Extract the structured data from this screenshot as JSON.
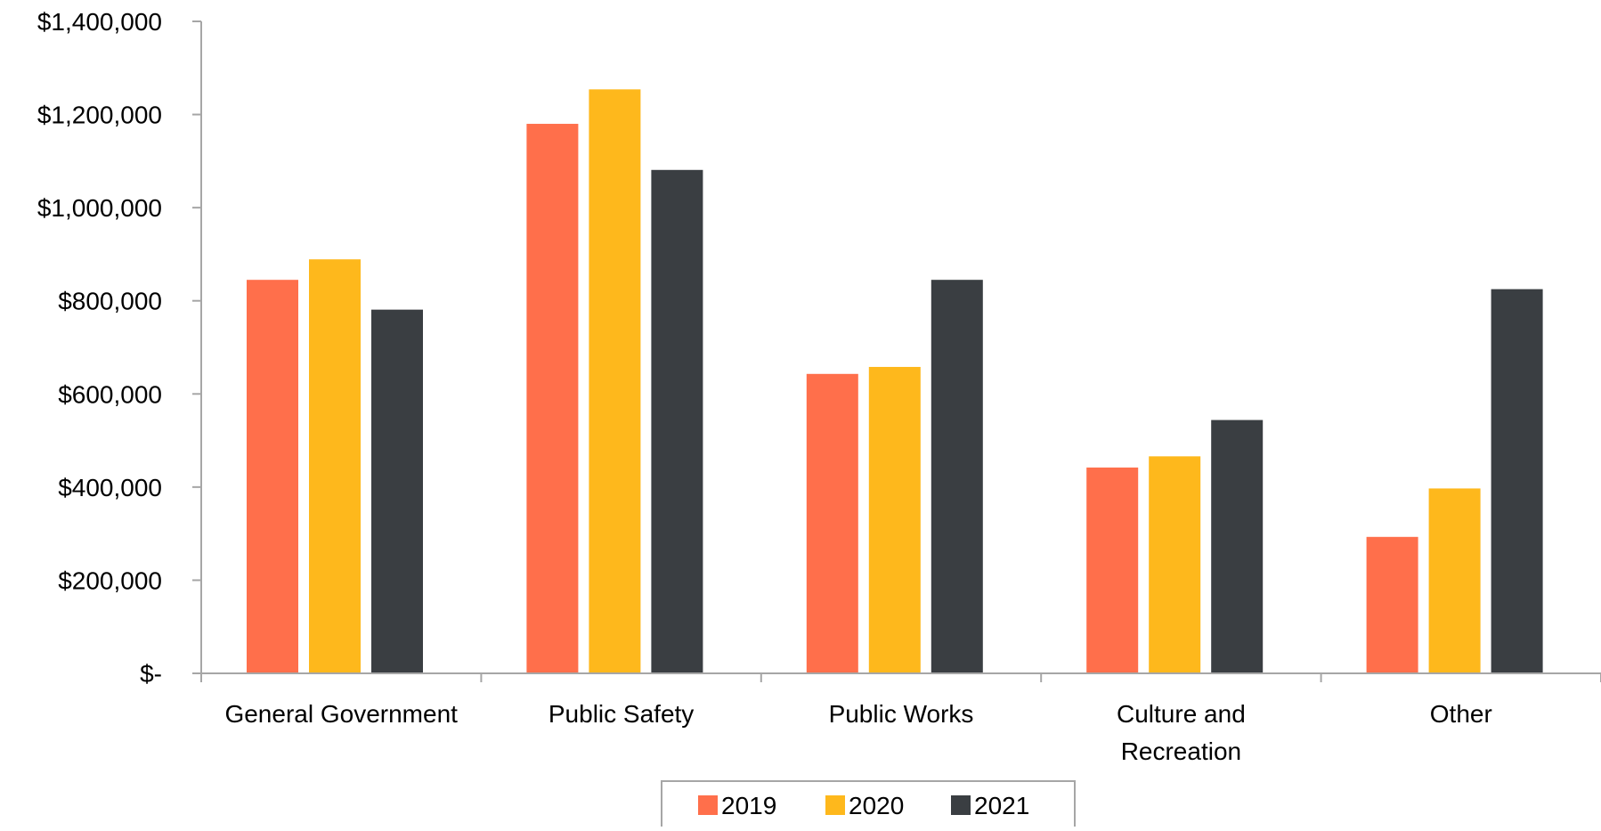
{
  "chart_data": {
    "type": "bar",
    "categories": [
      [
        "General Government"
      ],
      [
        "Public Safety"
      ],
      [
        "Public Works"
      ],
      [
        "Culture and",
        "Recreation"
      ],
      [
        "Other"
      ]
    ],
    "series": [
      {
        "name": "2019",
        "color": "#FF6F4B",
        "values": [
          845000,
          1180000,
          643000,
          442000,
          293000
        ]
      },
      {
        "name": "2020",
        "color": "#FEB81C",
        "values": [
          889000,
          1254000,
          658000,
          466000,
          397000
        ]
      },
      {
        "name": "2021",
        "color": "#3A3E42",
        "values": [
          781000,
          1081000,
          845000,
          544000,
          825000
        ]
      }
    ],
    "ylim": [
      0,
      1400000
    ],
    "yticks": [
      {
        "value": 0,
        "label": "$-"
      },
      {
        "value": 200000,
        "label": "$200,000"
      },
      {
        "value": 400000,
        "label": "$400,000"
      },
      {
        "value": 600000,
        "label": "$600,000"
      },
      {
        "value": 800000,
        "label": "$800,000"
      },
      {
        "value": 1000000,
        "label": "$1,000,000"
      },
      {
        "value": 1200000,
        "label": "$1,200,000"
      },
      {
        "value": 1400000,
        "label": "$1,400,000"
      }
    ],
    "title": "",
    "xlabel": "",
    "ylabel": "",
    "grid": false,
    "legend_position": "bottom",
    "axis_color": "#A6A6A6"
  }
}
